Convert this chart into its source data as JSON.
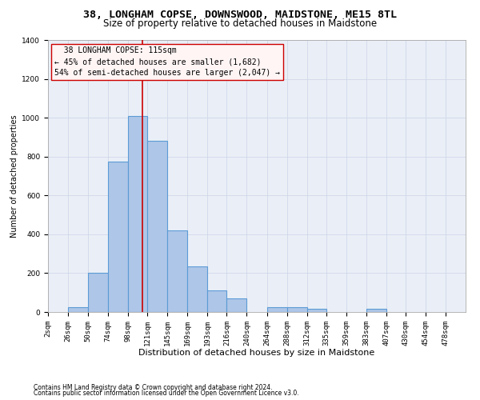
{
  "title": "38, LONGHAM COPSE, DOWNSWOOD, MAIDSTONE, ME15 8TL",
  "subtitle": "Size of property relative to detached houses in Maidstone",
  "xlabel": "Distribution of detached houses by size in Maidstone",
  "ylabel": "Number of detached properties",
  "footnote1": "Contains HM Land Registry data © Crown copyright and database right 2024.",
  "footnote2": "Contains public sector information licensed under the Open Government Licence v3.0.",
  "annotation_line1": "  38 LONGHAM COPSE: 115sqm  ",
  "annotation_line2": "← 45% of detached houses are smaller (1,682)",
  "annotation_line3": "54% of semi-detached houses are larger (2,047) →",
  "bin_edges": [
    2,
    26,
    50,
    74,
    98,
    121,
    145,
    169,
    193,
    216,
    240,
    264,
    288,
    312,
    335,
    359,
    383,
    407,
    430,
    454,
    478,
    502
  ],
  "bin_labels": [
    "2sqm",
    "26sqm",
    "50sqm",
    "74sqm",
    "98sqm",
    "121sqm",
    "145sqm",
    "169sqm",
    "193sqm",
    "216sqm",
    "240sqm",
    "264sqm",
    "288sqm",
    "312sqm",
    "335sqm",
    "359sqm",
    "383sqm",
    "407sqm",
    "430sqm",
    "454sqm",
    "478sqm"
  ],
  "bar_heights": [
    0,
    25,
    200,
    775,
    1010,
    880,
    420,
    235,
    110,
    70,
    0,
    25,
    25,
    15,
    0,
    0,
    15,
    0,
    0,
    0,
    0
  ],
  "bar_color": "#aec6e8",
  "bar_edge_color": "#5b9bd5",
  "bar_linewidth": 0.8,
  "grid_color": "#d0d8e8",
  "bg_color": "#eaeff7",
  "vline_x": 115,
  "vline_color": "#cc0000",
  "vline_linewidth": 1.2,
  "annotation_box_facecolor": "#fff5f5",
  "annotation_box_edge": "#cc0000",
  "ylim": [
    0,
    1400
  ],
  "yticks": [
    0,
    200,
    400,
    600,
    800,
    1000,
    1200,
    1400
  ],
  "title_fontsize": 9.5,
  "subtitle_fontsize": 8.5,
  "xlabel_fontsize": 8,
  "ylabel_fontsize": 7,
  "tick_fontsize": 6.5,
  "annotation_fontsize": 7,
  "footnote_fontsize": 5.5
}
